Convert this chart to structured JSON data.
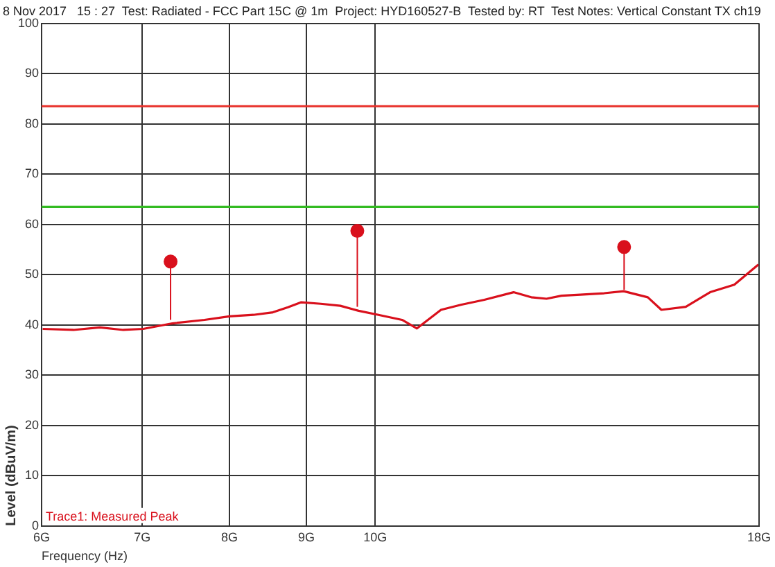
{
  "chart_data": {
    "type": "line",
    "title": "8 Nov 2017   15 : 27  Test: Radiated - FCC Part 15C @ 1m  Project: HYD160527-B  Tested by: RT  Test Notes: Vertical Constant TX ch19",
    "xlabel": "Frequency (Hz)",
    "ylabel": "Level (dBuV/m)",
    "log": "x",
    "grid": true,
    "legend": false,
    "xlim": [
      6,
      18
    ],
    "xticks": [
      {
        "value": 6,
        "label": "6G"
      },
      {
        "value": 7,
        "label": "7G"
      },
      {
        "value": 8,
        "label": "8G"
      },
      {
        "value": 9,
        "label": "9G"
      },
      {
        "value": 10,
        "label": "10G"
      },
      {
        "value": 18,
        "label": "18G"
      }
    ],
    "ylim": [
      0,
      100
    ],
    "yticks": [
      0,
      10,
      20,
      30,
      40,
      50,
      60,
      70,
      80,
      90,
      100
    ],
    "series": [
      {
        "type": "line",
        "color": "#d9101c",
        "marker": "none",
        "x": [
          6.01,
          6.3,
          6.56,
          6.8,
          7.01,
          7.33,
          7.7,
          8.0,
          8.3,
          8.55,
          8.75,
          8.93,
          9.2,
          9.48,
          9.75,
          10.05,
          10.42,
          10.66,
          11.06,
          11.4,
          11.82,
          12.36,
          12.7,
          13.0,
          13.3,
          13.69,
          14.2,
          14.63,
          15.18,
          15.5,
          16.09,
          16.7,
          17.33,
          17.98
        ],
        "values": [
          39.2,
          39.0,
          39.5,
          39.0,
          39.2,
          40.3,
          41.0,
          41.7,
          42.0,
          42.5,
          43.5,
          44.5,
          44.2,
          43.8,
          42.8,
          42.0,
          41.0,
          39.3,
          43.0,
          44.0,
          45.0,
          46.5,
          45.5,
          45.2,
          45.8,
          46.0,
          46.3,
          46.7,
          45.5,
          43.0,
          43.6,
          46.5,
          48.0,
          52.0
        ]
      },
      {
        "type": "scatter",
        "color": "#d9101c",
        "marker": "circle",
        "x": [
          7.31,
          9.73,
          14.64
        ],
        "values": [
          52.6,
          58.7,
          55.5
        ],
        "errors": [
          [
            41.0,
            52.6
          ],
          [
            43.6,
            58.7
          ],
          [
            47.0,
            55.5
          ]
        ]
      }
    ],
    "ref_lines": [
      {
        "axis": "y",
        "value": 83.5,
        "color": "#e8302a"
      },
      {
        "axis": "y",
        "value": 63.5,
        "color": "#33bb22"
      }
    ],
    "annotations": [
      "Trace1: Measured Peak"
    ]
  }
}
